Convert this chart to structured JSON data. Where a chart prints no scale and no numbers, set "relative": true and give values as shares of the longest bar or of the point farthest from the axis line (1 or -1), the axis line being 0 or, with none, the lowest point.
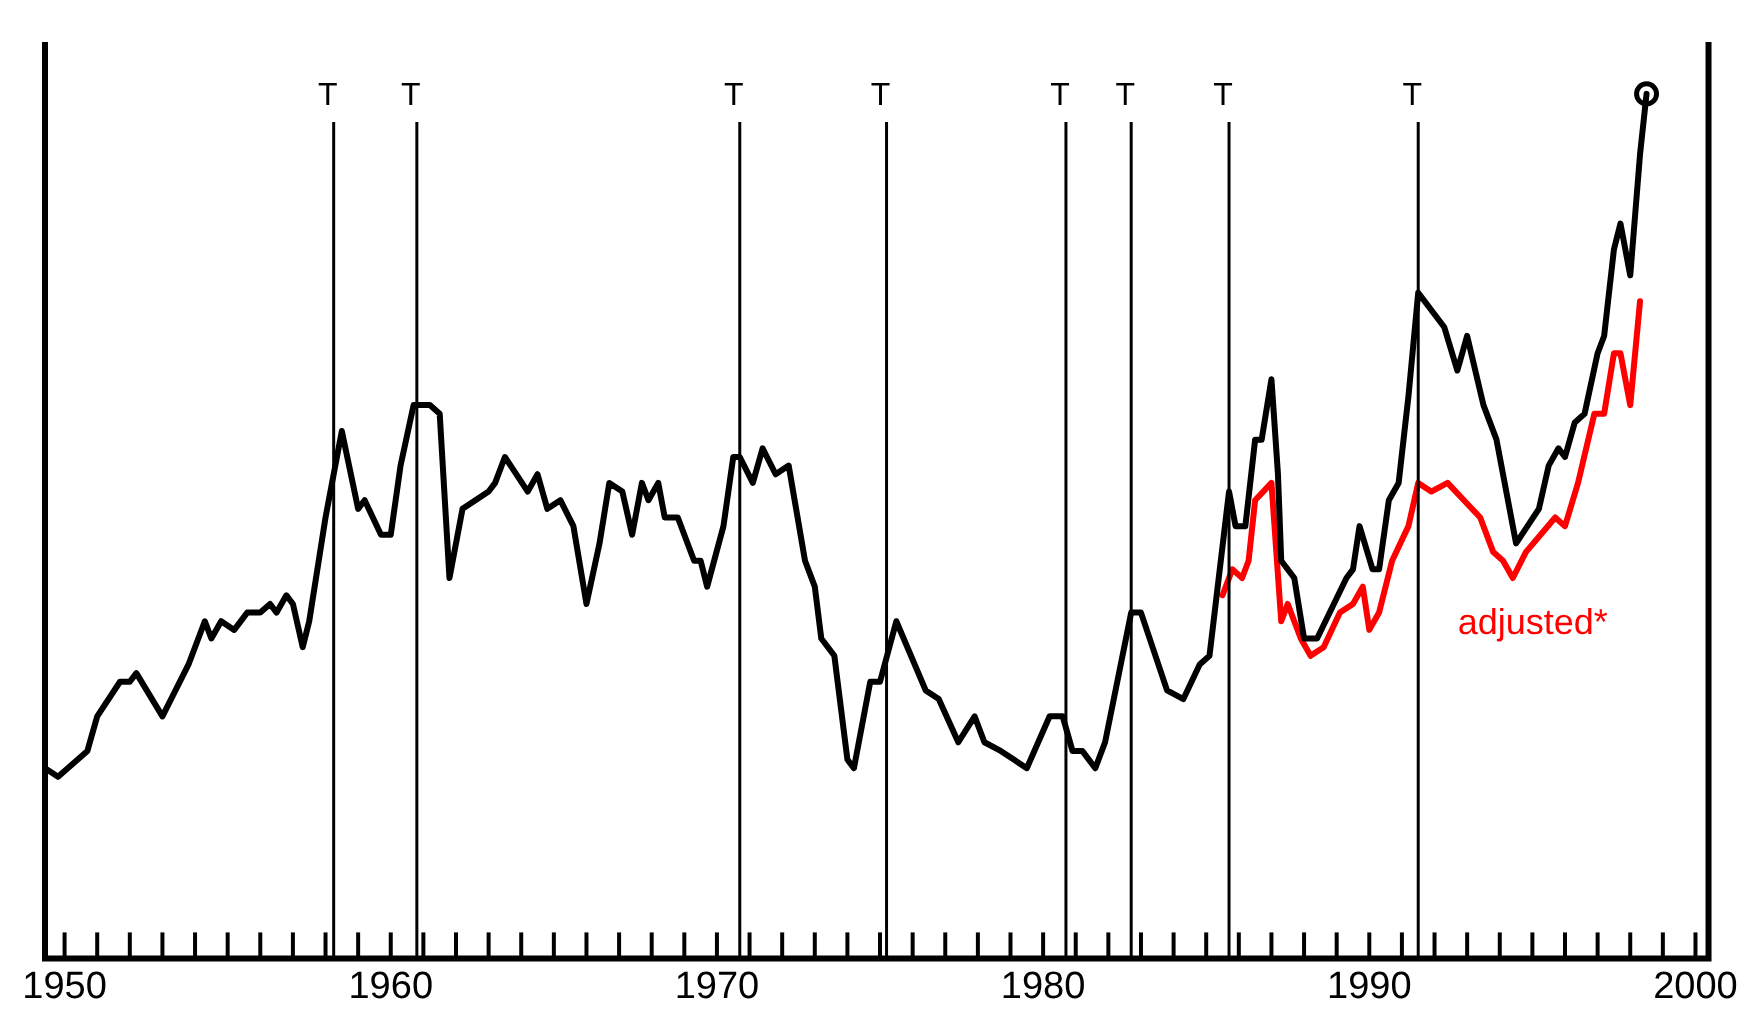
{
  "chart_data": {
    "type": "line",
    "relative": true,
    "legend": false,
    "grid": false,
    "marker": "none",
    "line_style": "solid",
    "xlim": [
      1949.4,
      2000.4
    ],
    "xticks": [
      1950,
      {
        "value": 1951,
        "label": null
      },
      {
        "value": 1952,
        "label": null
      },
      {
        "value": 1953,
        "label": null
      },
      {
        "value": 1954,
        "label": null
      },
      {
        "value": 1955,
        "label": null
      },
      {
        "value": 1956,
        "label": null
      },
      {
        "value": 1957,
        "label": null
      },
      {
        "value": 1958,
        "label": null
      },
      {
        "value": 1959,
        "label": null
      },
      1960,
      {
        "value": 1961,
        "label": null
      },
      {
        "value": 1962,
        "label": null
      },
      {
        "value": 1963,
        "label": null
      },
      {
        "value": 1964,
        "label": null
      },
      {
        "value": 1965,
        "label": null
      },
      {
        "value": 1966,
        "label": null
      },
      {
        "value": 1967,
        "label": null
      },
      {
        "value": 1968,
        "label": null
      },
      {
        "value": 1969,
        "label": null
      },
      1970,
      {
        "value": 1971,
        "label": null
      },
      {
        "value": 1972,
        "label": null
      },
      {
        "value": 1973,
        "label": null
      },
      {
        "value": 1974,
        "label": null
      },
      {
        "value": 1975,
        "label": null
      },
      {
        "value": 1976,
        "label": null
      },
      {
        "value": 1977,
        "label": null
      },
      {
        "value": 1978,
        "label": null
      },
      {
        "value": 1979,
        "label": null
      },
      1980,
      {
        "value": 1981,
        "label": null
      },
      {
        "value": 1982,
        "label": null
      },
      {
        "value": 1983,
        "label": null
      },
      {
        "value": 1984,
        "label": null
      },
      {
        "value": 1985,
        "label": null
      },
      {
        "value": 1986,
        "label": null
      },
      {
        "value": 1987,
        "label": null
      },
      {
        "value": 1988,
        "label": null
      },
      {
        "value": 1989,
        "label": null
      },
      1990,
      {
        "value": 1991,
        "label": null
      },
      {
        "value": 1992,
        "label": null
      },
      {
        "value": 1993,
        "label": null
      },
      {
        "value": 1994,
        "label": null
      },
      {
        "value": 1995,
        "label": null
      },
      {
        "value": 1996,
        "label": null
      },
      {
        "value": 1997,
        "label": null
      },
      {
        "value": 1998,
        "label": null
      },
      {
        "value": 1999,
        "label": null
      },
      2000
    ],
    "series": [
      {
        "color": "#000000",
        "x": [
          1949.4,
          1949.8,
          1950.7,
          1951.0,
          1951.7,
          1952.0,
          1952.2,
          1953.0,
          1953.8,
          1954.3,
          1954.5,
          1954.8,
          1955.2,
          1955.6,
          1956.0,
          1956.3,
          1956.5,
          1956.8,
          1957.0,
          1957.3,
          1957.5,
          1958.0,
          1958.5,
          1959.0,
          1959.2,
          1959.7,
          1960.0,
          1960.3,
          1960.7,
          1961.2,
          1961.5,
          1961.8,
          1962.2,
          1963.0,
          1963.2,
          1963.5,
          1964.2,
          1964.5,
          1964.8,
          1965.2,
          1965.6,
          1966.0,
          1966.4,
          1966.7,
          1967.1,
          1967.4,
          1967.7,
          1967.9,
          1968.2,
          1968.4,
          1968.8,
          1969.3,
          1969.5,
          1969.7,
          1970.2,
          1970.5,
          1970.7,
          1971.1,
          1971.4,
          1971.8,
          1972.2,
          1972.7,
          1973.0,
          1973.2,
          1973.6,
          1974.0,
          1974.2,
          1974.7,
          1975.0,
          1975.5,
          1976.4,
          1976.8,
          1977.4,
          1977.9,
          1978.2,
          1978.7,
          1979.1,
          1979.5,
          1980.2,
          1980.6,
          1980.9,
          1981.2,
          1981.6,
          1981.9,
          1982.7,
          1983.0,
          1983.8,
          1984.3,
          1984.8,
          1985.1,
          1985.7,
          1985.9,
          1986.2,
          1986.5,
          1986.7,
          1987.0,
          1987.2,
          1987.3,
          1987.7,
          1988.0,
          1988.4,
          1989.3,
          1989.5,
          1989.7,
          1990.1,
          1990.3,
          1990.6,
          1990.9,
          1991.2,
          1991.5,
          1992.3,
          1992.7,
          1993.0,
          1993.5,
          1993.9,
          1994.5,
          1995.2,
          1995.5,
          1995.8,
          1996.0,
          1996.3,
          1996.6,
          1997.0,
          1997.2,
          1997.5,
          1997.7,
          1998.0,
          1998.3,
          1998.5
        ],
        "values": [
          0.22,
          0.21,
          0.24,
          0.28,
          0.32,
          0.32,
          0.33,
          0.28,
          0.34,
          0.39,
          0.37,
          0.39,
          0.38,
          0.4,
          0.4,
          0.41,
          0.4,
          0.42,
          0.41,
          0.36,
          0.39,
          0.51,
          0.61,
          0.52,
          0.53,
          0.49,
          0.49,
          0.57,
          0.64,
          0.64,
          0.63,
          0.44,
          0.52,
          0.54,
          0.55,
          0.58,
          0.54,
          0.56,
          0.52,
          0.53,
          0.5,
          0.41,
          0.48,
          0.55,
          0.54,
          0.49,
          0.55,
          0.53,
          0.55,
          0.51,
          0.51,
          0.46,
          0.46,
          0.43,
          0.5,
          0.58,
          0.58,
          0.55,
          0.59,
          0.56,
          0.57,
          0.46,
          0.43,
          0.37,
          0.35,
          0.23,
          0.22,
          0.32,
          0.32,
          0.39,
          0.31,
          0.3,
          0.25,
          0.28,
          0.25,
          0.24,
          0.23,
          0.22,
          0.28,
          0.28,
          0.24,
          0.24,
          0.22,
          0.25,
          0.4,
          0.4,
          0.31,
          0.3,
          0.34,
          0.35,
          0.54,
          0.5,
          0.5,
          0.6,
          0.6,
          0.67,
          0.56,
          0.46,
          0.44,
          0.37,
          0.37,
          0.44,
          0.45,
          0.5,
          0.45,
          0.45,
          0.53,
          0.55,
          0.65,
          0.77,
          0.73,
          0.68,
          0.72,
          0.64,
          0.6,
          0.48,
          0.52,
          0.57,
          0.59,
          0.58,
          0.62,
          0.63,
          0.7,
          0.72,
          0.82,
          0.85,
          0.79,
          0.93,
          1
        ]
      },
      {
        "name": "adjusted*",
        "color": "#ff0000",
        "x": [
          1985.5,
          1985.8,
          1986.1,
          1986.3,
          1986.5,
          1987.0,
          1987.3,
          1987.5,
          1987.9,
          1988.2,
          1988.6,
          1989.1,
          1989.5,
          1989.8,
          1990.0,
          1990.3,
          1990.7,
          1991.2,
          1991.5,
          1991.9,
          1992.4,
          1992.9,
          1993.4,
          1993.8,
          1994.1,
          1994.4,
          1994.8,
          1995.7,
          1996.0,
          1996.4,
          1996.9,
          1997.2,
          1997.5,
          1997.7,
          1998.0,
          1998.3
        ],
        "values": [
          0.42,
          0.45,
          0.44,
          0.46,
          0.53,
          0.55,
          0.39,
          0.41,
          0.37,
          0.35,
          0.36,
          0.4,
          0.41,
          0.43,
          0.38,
          0.4,
          0.46,
          0.5,
          0.55,
          0.54,
          0.55,
          0.53,
          0.51,
          0.47,
          0.46,
          0.44,
          0.47,
          0.51,
          0.5,
          0.55,
          0.63,
          0.63,
          0.7,
          0.7,
          0.64,
          0.76
        ]
      }
    ],
    "ref_lines": [
      {
        "axis": "x",
        "value": 1958.25,
        "label": "T"
      },
      {
        "axis": "x",
        "value": 1960.8,
        "label": "T"
      },
      {
        "axis": "x",
        "value": 1970.7,
        "label": "T"
      },
      {
        "axis": "x",
        "value": 1975.2,
        "label": "T"
      },
      {
        "axis": "x",
        "value": 1980.7,
        "label": "T"
      },
      {
        "axis": "x",
        "value": 1982.7,
        "label": "T"
      },
      {
        "axis": "x",
        "value": 1985.7,
        "label": "T"
      },
      {
        "axis": "x",
        "value": 1991.5,
        "label": "T"
      }
    ]
  }
}
